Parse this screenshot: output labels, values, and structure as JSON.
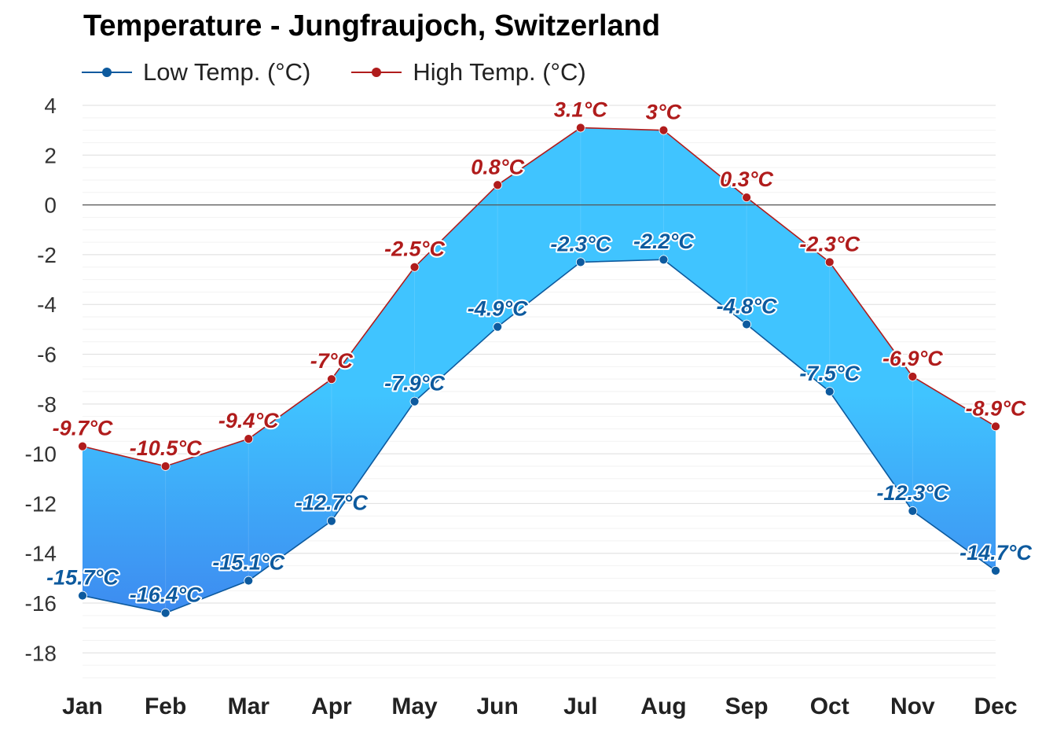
{
  "chart_data": {
    "type": "area",
    "title": "Temperature - Jungfraujoch, Switzerland",
    "categories": [
      "Jan",
      "Feb",
      "Mar",
      "Apr",
      "May",
      "Jun",
      "Jul",
      "Aug",
      "Sep",
      "Oct",
      "Nov",
      "Dec"
    ],
    "series": [
      {
        "name": "Low Temp. (°C)",
        "values": [
          -15.7,
          -16.4,
          -15.1,
          -12.7,
          -7.9,
          -4.9,
          -2.3,
          -2.2,
          -4.8,
          -7.5,
          -12.3,
          -14.7
        ],
        "labels": [
          "-15.7°C",
          "-16.4°C",
          "-15.1°C",
          "-12.7°C",
          "-7.9°C",
          "-4.9°C",
          "-2.3°C",
          "-2.2°C",
          "-4.8°C",
          "-7.5°C",
          "-12.3°C",
          "-14.7°C"
        ],
        "color": "#0d5a9e"
      },
      {
        "name": "High Temp. (°C)",
        "values": [
          -9.7,
          -10.5,
          -9.4,
          -7,
          -2.5,
          0.8,
          3.1,
          3,
          0.3,
          -2.3,
          -6.9,
          -8.9
        ],
        "labels": [
          "-9.7°C",
          "-10.5°C",
          "-9.4°C",
          "-7°C",
          "-2.5°C",
          "0.8°C",
          "3.1°C",
          "3°C",
          "0.3°C",
          "-2.3°C",
          "-6.9°C",
          "-8.9°C"
        ],
        "color": "#b01c1c"
      }
    ],
    "ylim": [
      -19,
      4
    ],
    "yticks": [
      4,
      2,
      0,
      -2,
      -4,
      -6,
      -8,
      -10,
      -12,
      -14,
      -16,
      -18
    ],
    "ytick_labels": [
      "4",
      "2",
      "0",
      "-2",
      "-4",
      "-6",
      "-8",
      "-10",
      "-12",
      "-14",
      "-16",
      "-18"
    ],
    "xlabel": "",
    "ylabel": "",
    "grid": true,
    "legend": "top-left",
    "fill_colors": {
      "cold": "#3d8bf0",
      "warm": "#40c4ff"
    }
  }
}
